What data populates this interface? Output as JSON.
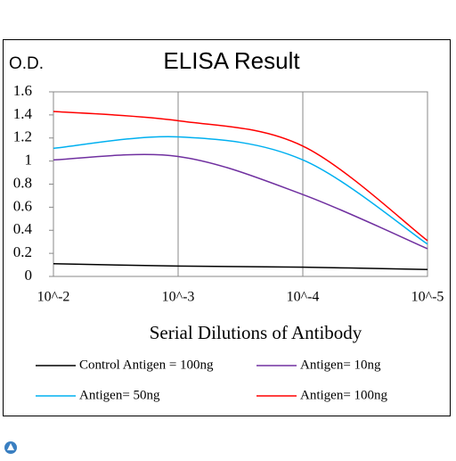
{
  "chart_data": {
    "type": "line",
    "title": "ELISA Result",
    "y_label": "O.D.",
    "x_label": "Serial Dilutions  of Antibody",
    "categories": [
      "10^-2",
      "10^-3",
      "10^-4",
      "10^-5"
    ],
    "series": [
      {
        "name": "Control Antigen = 100ng",
        "color": "#000000",
        "values": [
          0.11,
          0.09,
          0.08,
          0.06
        ]
      },
      {
        "name": "Antigen= 10ng",
        "color": "#7030a0",
        "values": [
          1.01,
          1.04,
          0.71,
          0.24
        ]
      },
      {
        "name": "Antigen= 50ng",
        "color": "#00b0f0",
        "values": [
          1.11,
          1.21,
          1.01,
          0.28
        ]
      },
      {
        "name": "Antigen= 100ng",
        "color": "#ff0000",
        "values": [
          1.43,
          1.35,
          1.13,
          0.31
        ]
      }
    ],
    "ylim": [
      0,
      1.6
    ],
    "yticks": [
      0,
      0.2,
      0.4,
      0.6,
      0.8,
      1,
      1.2,
      1.4,
      1.6
    ],
    "grid": true
  }
}
